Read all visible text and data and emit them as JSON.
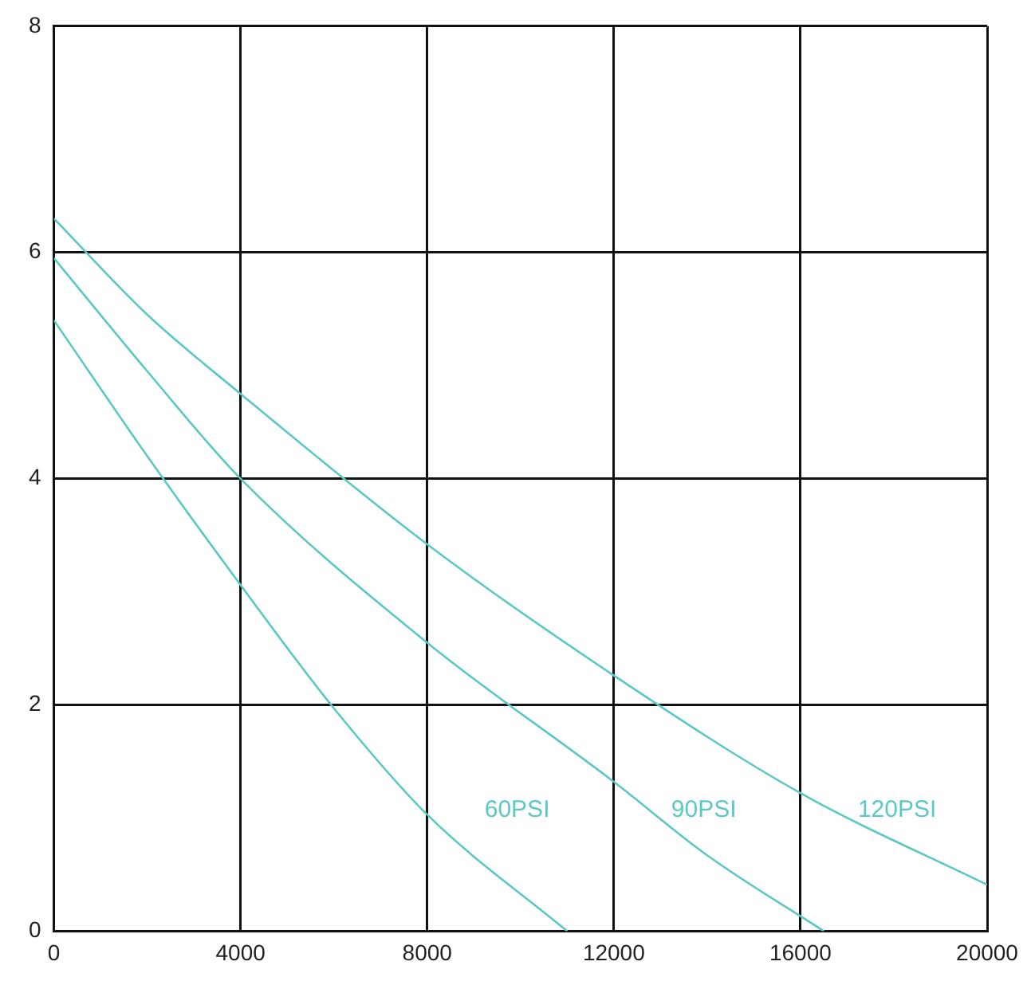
{
  "chart_data": {
    "type": "line",
    "xlim": [
      0,
      20000
    ],
    "ylim": [
      0,
      8
    ],
    "xticks": [
      0,
      4000,
      8000,
      12000,
      16000,
      20000
    ],
    "yticks": [
      0,
      2,
      4,
      6,
      8
    ],
    "grid": true,
    "legend": false,
    "marker": "none",
    "series": [
      {
        "name": "60PSI",
        "color": "#5cc8c4",
        "x": [
          0,
          2000,
          4000,
          6000,
          8000,
          11000
        ],
        "values": [
          5.4,
          4.2,
          3.06,
          1.97,
          1.03,
          0
        ]
      },
      {
        "name": "90PSI",
        "color": "#5cc8c4",
        "x": [
          0,
          2000,
          4000,
          8000,
          12000,
          14000,
          16500
        ],
        "values": [
          5.95,
          4.95,
          4.0,
          2.55,
          1.32,
          0.67,
          0
        ]
      },
      {
        "name": "120PSI",
        "color": "#5cc8c4",
        "x": [
          0,
          2000,
          4000,
          8000,
          12000,
          16000,
          20000
        ],
        "values": [
          6.3,
          5.45,
          4.75,
          3.42,
          2.26,
          1.22,
          0.41
        ]
      }
    ]
  }
}
